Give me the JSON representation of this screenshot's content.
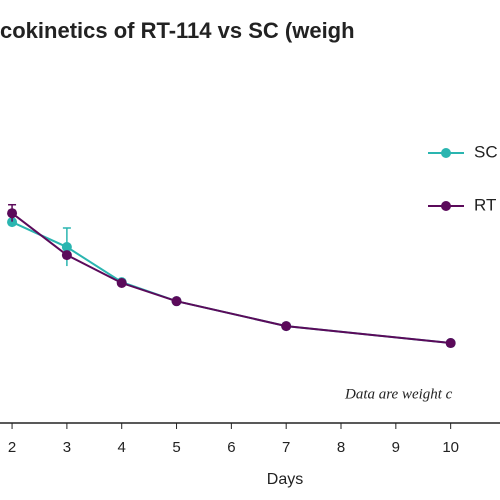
{
  "chart_data": {
    "type": "line",
    "title": "cokinetics of RT-114 vs SC (weigh",
    "xlabel": "Days",
    "annotation": "Data are weight c",
    "x": [
      2,
      3,
      4,
      5,
      7,
      10
    ],
    "series": [
      {
        "name": "SC",
        "color": "#2ab5b0",
        "values": [
          47.5,
          41.6,
          33.3,
          28.8,
          22.9,
          18.9
        ],
        "errors": [
          0,
          4.5,
          0,
          0,
          0,
          0
        ]
      },
      {
        "name": "RT",
        "color": "#5b0a5a",
        "values": [
          49.6,
          39.7,
          33.1,
          28.8,
          22.9,
          18.9
        ],
        "errors": [
          2,
          0,
          0,
          0,
          0,
          0
        ]
      }
    ],
    "xlim": [
      1.78,
      10.9
    ],
    "ylim": [
      0,
      100
    ],
    "xticks": [
      2,
      3,
      4,
      5,
      6,
      7,
      8,
      9,
      10
    ]
  }
}
